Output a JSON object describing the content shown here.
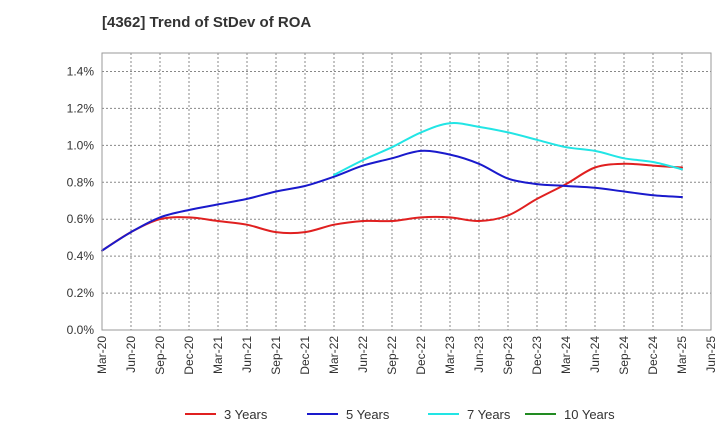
{
  "chart_data": {
    "type": "line",
    "title": "[4362]  Trend of StDev of ROA",
    "xlabel": "",
    "ylabel": "",
    "ylim": [
      0,
      1.5
    ],
    "y_ticks": [
      "0.0%",
      "0.2%",
      "0.4%",
      "0.6%",
      "0.8%",
      "1.0%",
      "1.2%",
      "1.4%"
    ],
    "y_tick_values": [
      0,
      0.2,
      0.4,
      0.6,
      0.8,
      1.0,
      1.2,
      1.4
    ],
    "categories": [
      "Mar-20",
      "Jun-20",
      "Sep-20",
      "Dec-20",
      "Mar-21",
      "Jun-21",
      "Sep-21",
      "Dec-21",
      "Mar-22",
      "Jun-22",
      "Sep-22",
      "Dec-22",
      "Mar-23",
      "Jun-23",
      "Sep-23",
      "Dec-23",
      "Mar-24",
      "Jun-24",
      "Sep-24",
      "Dec-24",
      "Mar-25",
      "Jun-25"
    ],
    "grid": true,
    "legend_position": "bottom",
    "series": [
      {
        "name": "3 Years",
        "color": "#e02020",
        "values": [
          0.43,
          0.53,
          0.6,
          0.61,
          0.59,
          0.57,
          0.53,
          0.53,
          0.57,
          0.59,
          0.59,
          0.61,
          0.61,
          0.59,
          0.62,
          0.71,
          0.79,
          0.88,
          0.9,
          0.89,
          0.88,
          null
        ]
      },
      {
        "name": "5 Years",
        "color": "#1a1acc",
        "values": [
          0.43,
          0.53,
          0.61,
          0.65,
          0.68,
          0.71,
          0.75,
          0.78,
          0.83,
          0.89,
          0.93,
          0.97,
          0.95,
          0.9,
          0.82,
          0.79,
          0.78,
          0.77,
          0.75,
          0.73,
          0.72,
          null
        ]
      },
      {
        "name": "7 Years",
        "color": "#22e5e5",
        "values": [
          null,
          null,
          null,
          null,
          null,
          null,
          null,
          null,
          0.84,
          0.92,
          0.99,
          1.07,
          1.12,
          1.1,
          1.07,
          1.03,
          0.99,
          0.97,
          0.93,
          0.91,
          0.87,
          null
        ]
      },
      {
        "name": "10 Years",
        "color": "#228b22",
        "values": [
          null,
          null,
          null,
          null,
          null,
          null,
          null,
          null,
          null,
          null,
          null,
          null,
          null,
          null,
          null,
          null,
          null,
          null,
          null,
          null,
          null,
          null
        ]
      }
    ]
  }
}
